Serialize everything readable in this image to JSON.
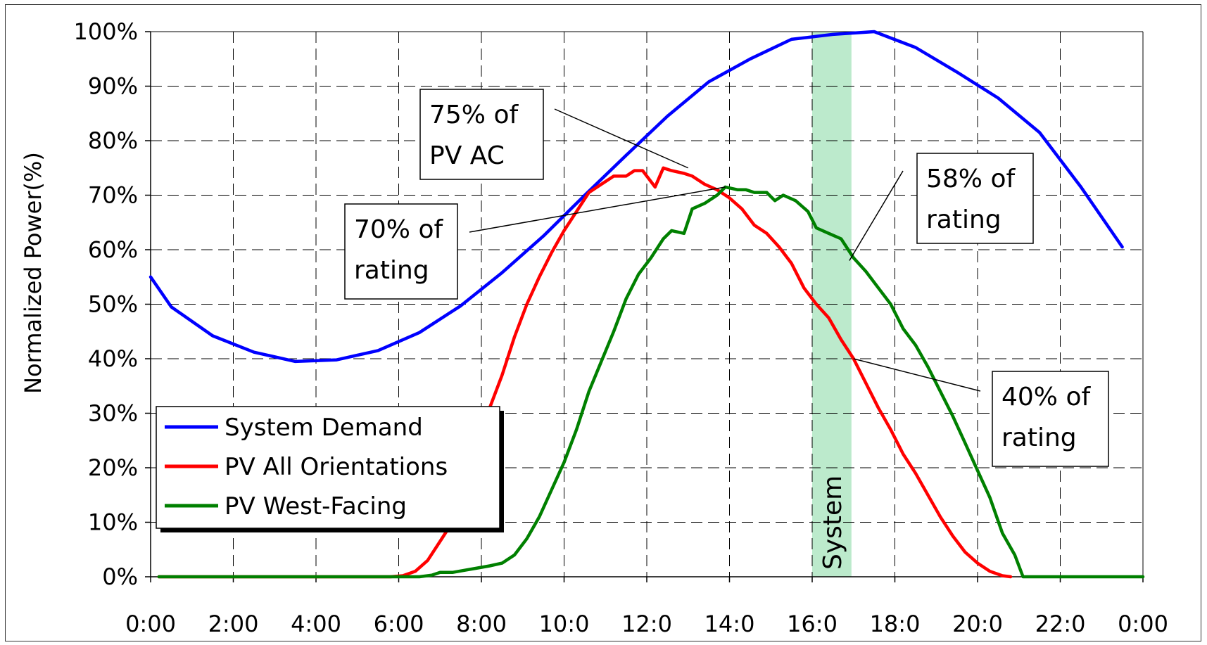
{
  "chart_data": {
    "type": "line",
    "title": "",
    "xlabel": "",
    "ylabel": "Normalized Power(%)",
    "x_unit": "hours",
    "xlim": [
      0,
      24
    ],
    "ylim": [
      0,
      100
    ],
    "x_tick_values": [
      0,
      2,
      4,
      6,
      8,
      10,
      12,
      14,
      16,
      18,
      20,
      22,
      24
    ],
    "x_tick_labels": [
      "0:00",
      "2:00",
      "4:00",
      "6:00",
      "8:00",
      "10:0",
      "12:0",
      "14:0",
      "16:0",
      "18:0",
      "20:0",
      "22:0",
      "0:00"
    ],
    "y_tick_values": [
      0,
      10,
      20,
      30,
      40,
      50,
      60,
      70,
      80,
      90,
      100
    ],
    "y_tick_labels": [
      "0%",
      "10%",
      "20%",
      "30%",
      "40%",
      "50%",
      "60%",
      "70%",
      "80%",
      "90%",
      "100%"
    ],
    "grid": true,
    "legend_position": "bottom-left",
    "shaded_band": {
      "x_start": 16.0,
      "x_end": 16.95,
      "label": "System",
      "color": "#8fdcaa"
    },
    "series": [
      {
        "name": "System Demand",
        "color": "#0000ff",
        "points": [
          [
            0.0,
            55
          ],
          [
            0.5,
            49.5
          ],
          [
            1.5,
            44.2
          ],
          [
            2.5,
            41.2
          ],
          [
            3.5,
            39.5
          ],
          [
            4.5,
            39.8
          ],
          [
            5.5,
            41.5
          ],
          [
            6.5,
            44.8
          ],
          [
            7.5,
            49.7
          ],
          [
            8.5,
            55.8
          ],
          [
            9.5,
            62.5
          ],
          [
            10.5,
            70
          ],
          [
            11.5,
            77.3
          ],
          [
            12.5,
            84.5
          ],
          [
            13.5,
            90.8
          ],
          [
            14.5,
            95
          ],
          [
            15.5,
            98.6
          ],
          [
            16.5,
            99.5
          ],
          [
            17.5,
            100
          ],
          [
            18.5,
            97.1
          ],
          [
            19.5,
            92.6
          ],
          [
            20.5,
            87.8
          ],
          [
            21.5,
            81.5
          ],
          [
            22.5,
            71.5
          ],
          [
            23.5,
            60.5
          ]
        ]
      },
      {
        "name": "PV All Orientations",
        "color": "#ff0000",
        "points": [
          [
            0.2,
            0
          ],
          [
            5.8,
            0
          ],
          [
            6.1,
            0.2
          ],
          [
            6.4,
            1
          ],
          [
            6.7,
            3
          ],
          [
            7.0,
            6.5
          ],
          [
            7.3,
            10
          ],
          [
            7.6,
            15
          ],
          [
            7.9,
            22
          ],
          [
            8.2,
            31
          ],
          [
            8.5,
            37
          ],
          [
            8.8,
            44
          ],
          [
            9.1,
            50
          ],
          [
            9.4,
            55
          ],
          [
            9.7,
            59.5
          ],
          [
            10.0,
            63.5
          ],
          [
            10.3,
            67
          ],
          [
            10.6,
            70.5
          ],
          [
            10.9,
            72
          ],
          [
            11.2,
            73.5
          ],
          [
            11.5,
            73.5
          ],
          [
            11.7,
            74.5
          ],
          [
            11.9,
            74.5
          ],
          [
            12.1,
            72.5
          ],
          [
            12.2,
            71.5
          ],
          [
            12.4,
            75
          ],
          [
            12.6,
            74.5
          ],
          [
            12.9,
            74
          ],
          [
            13.1,
            73.5
          ],
          [
            13.4,
            72
          ],
          [
            13.7,
            71
          ],
          [
            14.0,
            69.5
          ],
          [
            14.3,
            67.5
          ],
          [
            14.6,
            64.5
          ],
          [
            14.9,
            63
          ],
          [
            15.2,
            60.5
          ],
          [
            15.5,
            57.5
          ],
          [
            15.8,
            53
          ],
          [
            16.1,
            50
          ],
          [
            16.4,
            47.5
          ],
          [
            16.7,
            43.5
          ],
          [
            17.0,
            40
          ],
          [
            17.3,
            35.5
          ],
          [
            17.6,
            31
          ],
          [
            17.9,
            27
          ],
          [
            18.2,
            22.5
          ],
          [
            18.5,
            19
          ],
          [
            18.8,
            15
          ],
          [
            19.1,
            11
          ],
          [
            19.4,
            7.5
          ],
          [
            19.7,
            4.5
          ],
          [
            20.0,
            2.5
          ],
          [
            20.3,
            1
          ],
          [
            20.6,
            0.2
          ],
          [
            20.8,
            0
          ]
        ]
      },
      {
        "name": "PV West-Facing",
        "color": "#008000",
        "points": [
          [
            0.2,
            0
          ],
          [
            6.5,
            0
          ],
          [
            6.8,
            0.3
          ],
          [
            7.0,
            0.8
          ],
          [
            7.3,
            0.8
          ],
          [
            7.6,
            1.2
          ],
          [
            7.9,
            1.6
          ],
          [
            8.2,
            2
          ],
          [
            8.5,
            2.5
          ],
          [
            8.8,
            4
          ],
          [
            9.1,
            7
          ],
          [
            9.4,
            11
          ],
          [
            9.7,
            16
          ],
          [
            10.0,
            21
          ],
          [
            10.3,
            27
          ],
          [
            10.6,
            34
          ],
          [
            10.9,
            39.5
          ],
          [
            11.2,
            45
          ],
          [
            11.5,
            51
          ],
          [
            11.8,
            55.5
          ],
          [
            12.1,
            58.5
          ],
          [
            12.4,
            62
          ],
          [
            12.6,
            63.5
          ],
          [
            12.9,
            63
          ],
          [
            13.1,
            67.5
          ],
          [
            13.4,
            68.5
          ],
          [
            13.7,
            70
          ],
          [
            13.9,
            71.5
          ],
          [
            14.2,
            71
          ],
          [
            14.4,
            71
          ],
          [
            14.6,
            70.5
          ],
          [
            14.9,
            70.5
          ],
          [
            15.1,
            69
          ],
          [
            15.3,
            70
          ],
          [
            15.6,
            69
          ],
          [
            15.9,
            67
          ],
          [
            16.1,
            64
          ],
          [
            16.4,
            63
          ],
          [
            16.7,
            62
          ],
          [
            17.0,
            58.5
          ],
          [
            17.3,
            56
          ],
          [
            17.6,
            53
          ],
          [
            17.9,
            50
          ],
          [
            18.2,
            45.5
          ],
          [
            18.5,
            42.5
          ],
          [
            18.8,
            38.5
          ],
          [
            19.1,
            34
          ],
          [
            19.4,
            29.5
          ],
          [
            19.7,
            24.5
          ],
          [
            20.0,
            19.5
          ],
          [
            20.3,
            14.5
          ],
          [
            20.6,
            8
          ],
          [
            20.9,
            4
          ],
          [
            21.1,
            0
          ],
          [
            24,
            0
          ]
        ]
      }
    ],
    "annotations": [
      {
        "lines": [
          "75% of",
          "PV AC"
        ],
        "target": [
          13.0,
          75
        ]
      },
      {
        "lines": [
          "70% of",
          "rating"
        ],
        "target": [
          13.9,
          71.5
        ]
      },
      {
        "lines": [
          "58% of",
          "rating"
        ],
        "target": [
          16.9,
          58
        ]
      },
      {
        "lines": [
          "40% of",
          "rating"
        ],
        "target": [
          17.0,
          40
        ]
      }
    ]
  }
}
